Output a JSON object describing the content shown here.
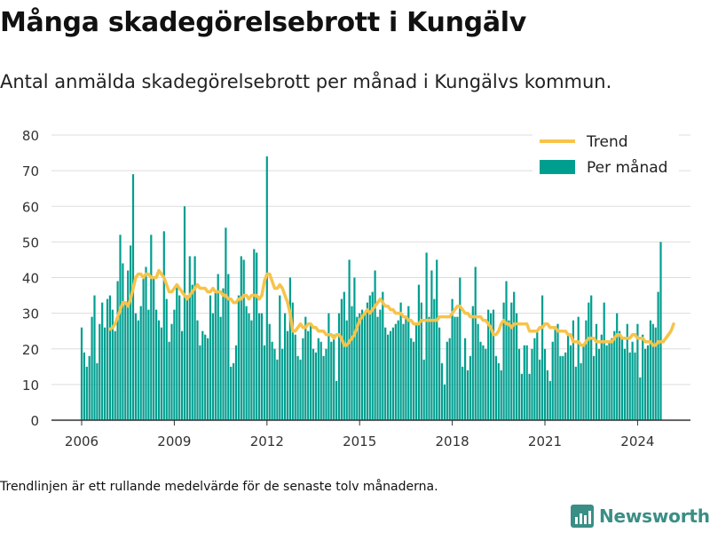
{
  "title": "Många skadegörelsebrott i Kungälv",
  "subtitle": "Antal anmälda skadegörelsebrott per månad i Kungälvs kommun.",
  "footnote": "Trendlinjen är ett rullande medelvärde för de senaste tolv månaderna.",
  "brand": {
    "name": "Newsworthy",
    "logo_icon": "bar-chart-logo-icon"
  },
  "colors": {
    "bars": "#009e8f",
    "trend": "#f7c34a",
    "grid": "#dddddd",
    "axis": "#333333",
    "brand": "#3a8e85"
  },
  "chart_data": {
    "type": "bar",
    "x_start": "2006-01",
    "x_ticks": [
      "2006",
      "2009",
      "2012",
      "2015",
      "2018",
      "2021",
      "2024"
    ],
    "y_ticks": [
      "0",
      "10",
      "20",
      "30",
      "40",
      "50",
      "60",
      "70",
      "80"
    ],
    "ylim": [
      0,
      80
    ],
    "grid": true,
    "legend": {
      "position": "top-right",
      "entries": [
        "Trend",
        "Per månad"
      ]
    },
    "series": [
      {
        "name": "Per månad",
        "type": "bar",
        "values": [
          26,
          19,
          15,
          18,
          29,
          35,
          16,
          27,
          33,
          26,
          34,
          35,
          31,
          25,
          39,
          52,
          44,
          33,
          42,
          49,
          69,
          30,
          28,
          32,
          40,
          43,
          31,
          52,
          40,
          31,
          28,
          26,
          53,
          34,
          22,
          27,
          31,
          38,
          35,
          25,
          60,
          35,
          46,
          38,
          46,
          28,
          21,
          25,
          24,
          23,
          35,
          30,
          36,
          41,
          29,
          37,
          54,
          41,
          15,
          16,
          21,
          35,
          46,
          45,
          32,
          30,
          28,
          48,
          47,
          30,
          30,
          21,
          74,
          27,
          22,
          20,
          17,
          35,
          20,
          30,
          25,
          40,
          33,
          24,
          18,
          17,
          23,
          29,
          25,
          27,
          20,
          19,
          23,
          22,
          18,
          20,
          30,
          22,
          24,
          11,
          30,
          34,
          36,
          28,
          45,
          32,
          40,
          29,
          30,
          31,
          30,
          33,
          35,
          36,
          42,
          29,
          31,
          36,
          26,
          24,
          25,
          26,
          27,
          28,
          33,
          27,
          29,
          32,
          23,
          22,
          27,
          38,
          33,
          17,
          47,
          29,
          42,
          34,
          45,
          26,
          16,
          10,
          22,
          23,
          34,
          29,
          29,
          40,
          15,
          23,
          14,
          18,
          32,
          43,
          27,
          22,
          21,
          20,
          31,
          30,
          31,
          18,
          16,
          14,
          33,
          39,
          28,
          33,
          36,
          30,
          20,
          13,
          21,
          21,
          13,
          20,
          23,
          25,
          17,
          35,
          20,
          14,
          11,
          22,
          26,
          27,
          18,
          18,
          19,
          24,
          21,
          28,
          15,
          29,
          16,
          21,
          28,
          33,
          35,
          18,
          27,
          20,
          24,
          33,
          21,
          22,
          23,
          25,
          30,
          25,
          23,
          20,
          27,
          19,
          22,
          19,
          27,
          12,
          24,
          20,
          21,
          28,
          27,
          26,
          36,
          50
        ]
      },
      {
        "name": "Trend",
        "type": "line",
        "start_index": 11,
        "values": [
          25.5,
          26,
          27,
          29,
          31,
          33,
          33,
          32,
          34,
          37,
          40,
          41,
          41,
          40,
          41,
          41,
          40,
          40,
          40,
          42,
          41,
          40,
          38,
          36,
          36,
          37,
          38,
          37,
          36,
          35,
          34,
          35,
          36,
          37,
          38,
          37,
          37,
          37,
          36,
          36,
          37,
          36,
          36,
          36,
          35,
          35,
          34,
          34,
          33,
          33,
          34,
          34,
          35,
          35,
          34,
          35,
          35,
          35,
          34,
          35,
          39,
          41,
          41,
          39,
          37,
          37,
          38,
          37,
          35,
          33,
          30,
          25,
          25,
          26,
          27,
          26,
          26,
          27,
          27,
          26,
          26,
          25,
          25,
          25,
          24,
          24,
          24,
          23,
          24,
          24,
          23,
          21,
          21,
          22,
          23,
          24,
          26,
          28,
          29,
          30,
          31,
          30,
          31,
          32,
          33,
          34,
          33,
          32,
          32,
          31,
          31,
          30,
          30,
          30,
          29,
          29,
          28,
          28,
          27,
          27,
          27,
          28,
          28,
          28,
          28,
          28,
          28,
          28,
          29,
          29,
          29,
          29,
          29,
          30,
          31,
          32,
          32,
          31,
          30,
          30,
          29,
          29,
          29,
          29,
          29,
          28,
          28,
          27,
          26,
          24,
          24,
          25,
          27,
          28,
          27,
          27,
          26,
          27,
          27,
          27,
          27,
          27,
          27,
          25,
          25,
          25,
          25,
          26,
          26,
          27,
          27,
          26,
          26,
          26,
          25,
          25,
          25,
          25,
          24,
          24,
          22,
          22,
          22,
          21,
          21,
          22,
          23,
          23,
          23,
          22,
          22,
          22,
          22,
          22,
          22,
          22,
          23,
          24,
          24,
          23,
          23,
          23,
          23,
          24,
          24,
          23,
          23,
          23,
          22,
          22,
          22,
          21,
          21,
          22,
          22,
          22,
          23,
          24,
          25,
          27
        ]
      }
    ]
  }
}
